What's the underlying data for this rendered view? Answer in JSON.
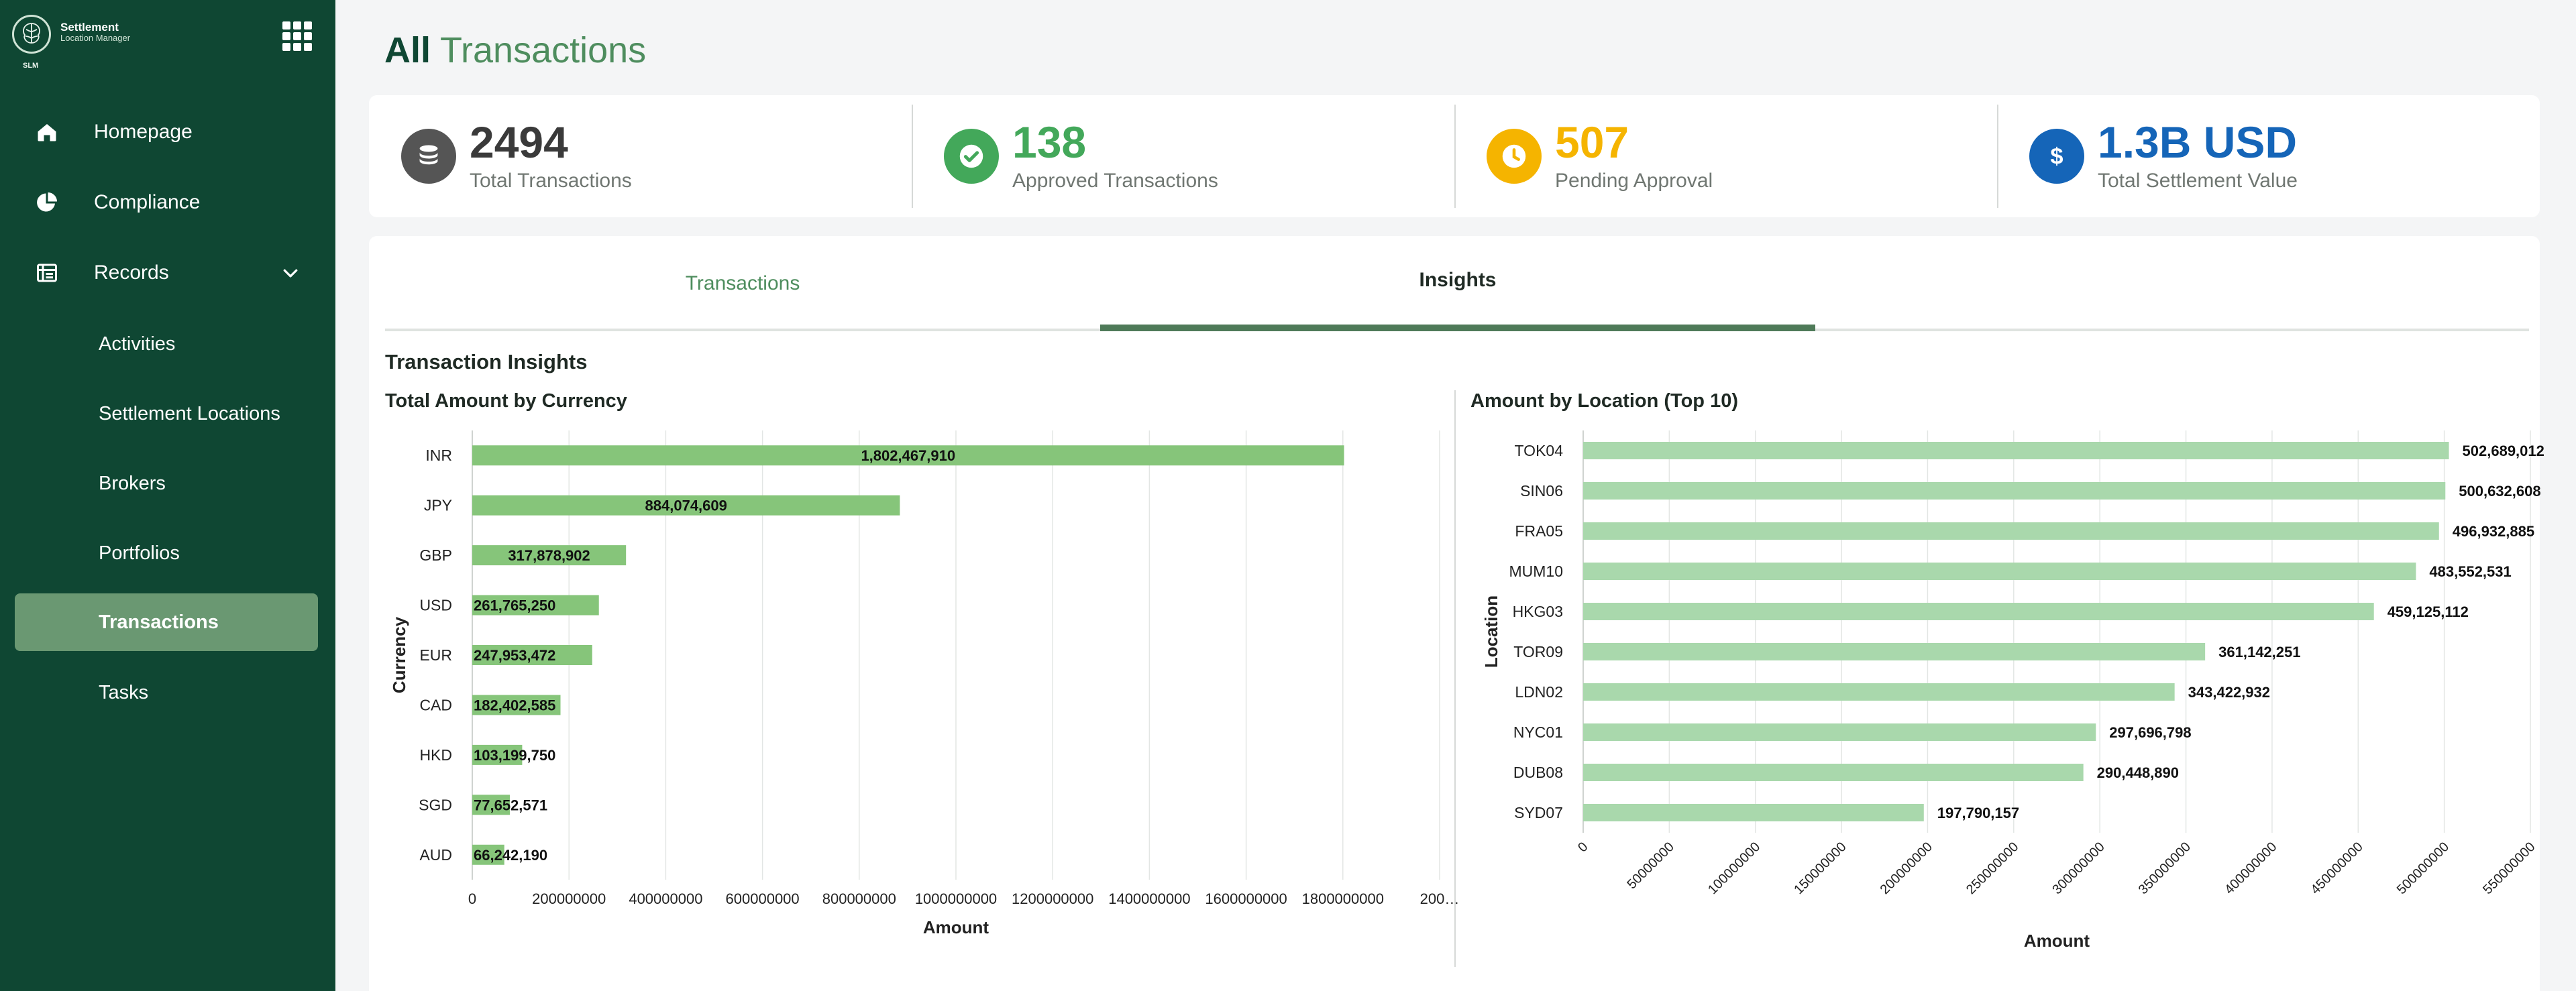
{
  "brand": {
    "title": "Settlement",
    "subtitle": "Location Manager",
    "abbr": "SLM"
  },
  "nav": {
    "homepage": "Homepage",
    "compliance": "Compliance",
    "records": "Records",
    "sub": [
      "Activities",
      "Settlement Locations",
      "Brokers",
      "Portfolios",
      "Transactions",
      "Tasks"
    ],
    "active": "Transactions"
  },
  "page": {
    "title_bold": "All",
    "title_rest": "Transactions"
  },
  "stats": [
    {
      "value": "2494",
      "label": "Total Transactions",
      "color": "#3a3a3a",
      "icon": "coins-icon"
    },
    {
      "value": "138",
      "label": "Approved Transactions",
      "color": "#43a85a",
      "icon": "check-circle-icon"
    },
    {
      "value": "507",
      "label": "Pending Approval",
      "color": "#f5b400",
      "icon": "clock-icon"
    },
    {
      "value": "1.3B USD",
      "label": "Total Settlement Value",
      "color": "#1565b8",
      "icon": "dollar-icon"
    }
  ],
  "tabs": {
    "transactions": "Transactions",
    "insights": "Insights",
    "active": "Insights"
  },
  "section_title": "Transaction Insights",
  "chart_data": [
    {
      "type": "bar",
      "orientation": "horizontal",
      "title": "Total Amount by Currency",
      "xlabel": "Amount",
      "ylabel": "Currency",
      "xlim": [
        0,
        2000000000
      ],
      "xticks": [
        "0",
        "200000000",
        "400000000",
        "600000000",
        "800000000",
        "1000000000",
        "1200000000",
        "1400000000",
        "1600000000",
        "1800000000",
        "200…"
      ],
      "categories": [
        "INR",
        "JPY",
        "GBP",
        "USD",
        "EUR",
        "CAD",
        "HKD",
        "SGD",
        "AUD"
      ],
      "values": [
        1802467910,
        884074609,
        317878902,
        261765250,
        247953472,
        182402585,
        103199750,
        77652571,
        66242190
      ],
      "labels": [
        "1,802,467,910",
        "884,074,609",
        "317,878,902",
        "261,765,250",
        "247,953,472",
        "182,402,585",
        "103,199,750",
        "77,652,571",
        "66,242,190"
      ],
      "color": "#86c57a",
      "grid": true
    },
    {
      "type": "bar",
      "orientation": "horizontal",
      "title": "Amount by Location (Top 10)",
      "xlabel": "Amount",
      "ylabel": "Location",
      "xlim": [
        0,
        550000000
      ],
      "xticks": [
        "0",
        "50000000",
        "100000000",
        "150000000",
        "200000000",
        "250000000",
        "300000000",
        "350000000",
        "400000000",
        "450000000",
        "500000000",
        "550000000"
      ],
      "categories": [
        "TOK04",
        "SIN06",
        "FRA05",
        "MUM10",
        "HKG03",
        "TOR09",
        "LDN02",
        "NYC01",
        "DUB08",
        "SYD07"
      ],
      "values": [
        502689012,
        500632608,
        496932885,
        483552531,
        459125112,
        361142251,
        343422932,
        297696798,
        290448890,
        197790157
      ],
      "labels": [
        "502,689,012",
        "500,632,608",
        "496,932,885",
        "483,552,531",
        "459,125,112",
        "361,142,251",
        "343,422,932",
        "297,696,798",
        "290,448,890",
        "197,790,157"
      ],
      "color": "#a9d8ac",
      "grid": true
    }
  ]
}
